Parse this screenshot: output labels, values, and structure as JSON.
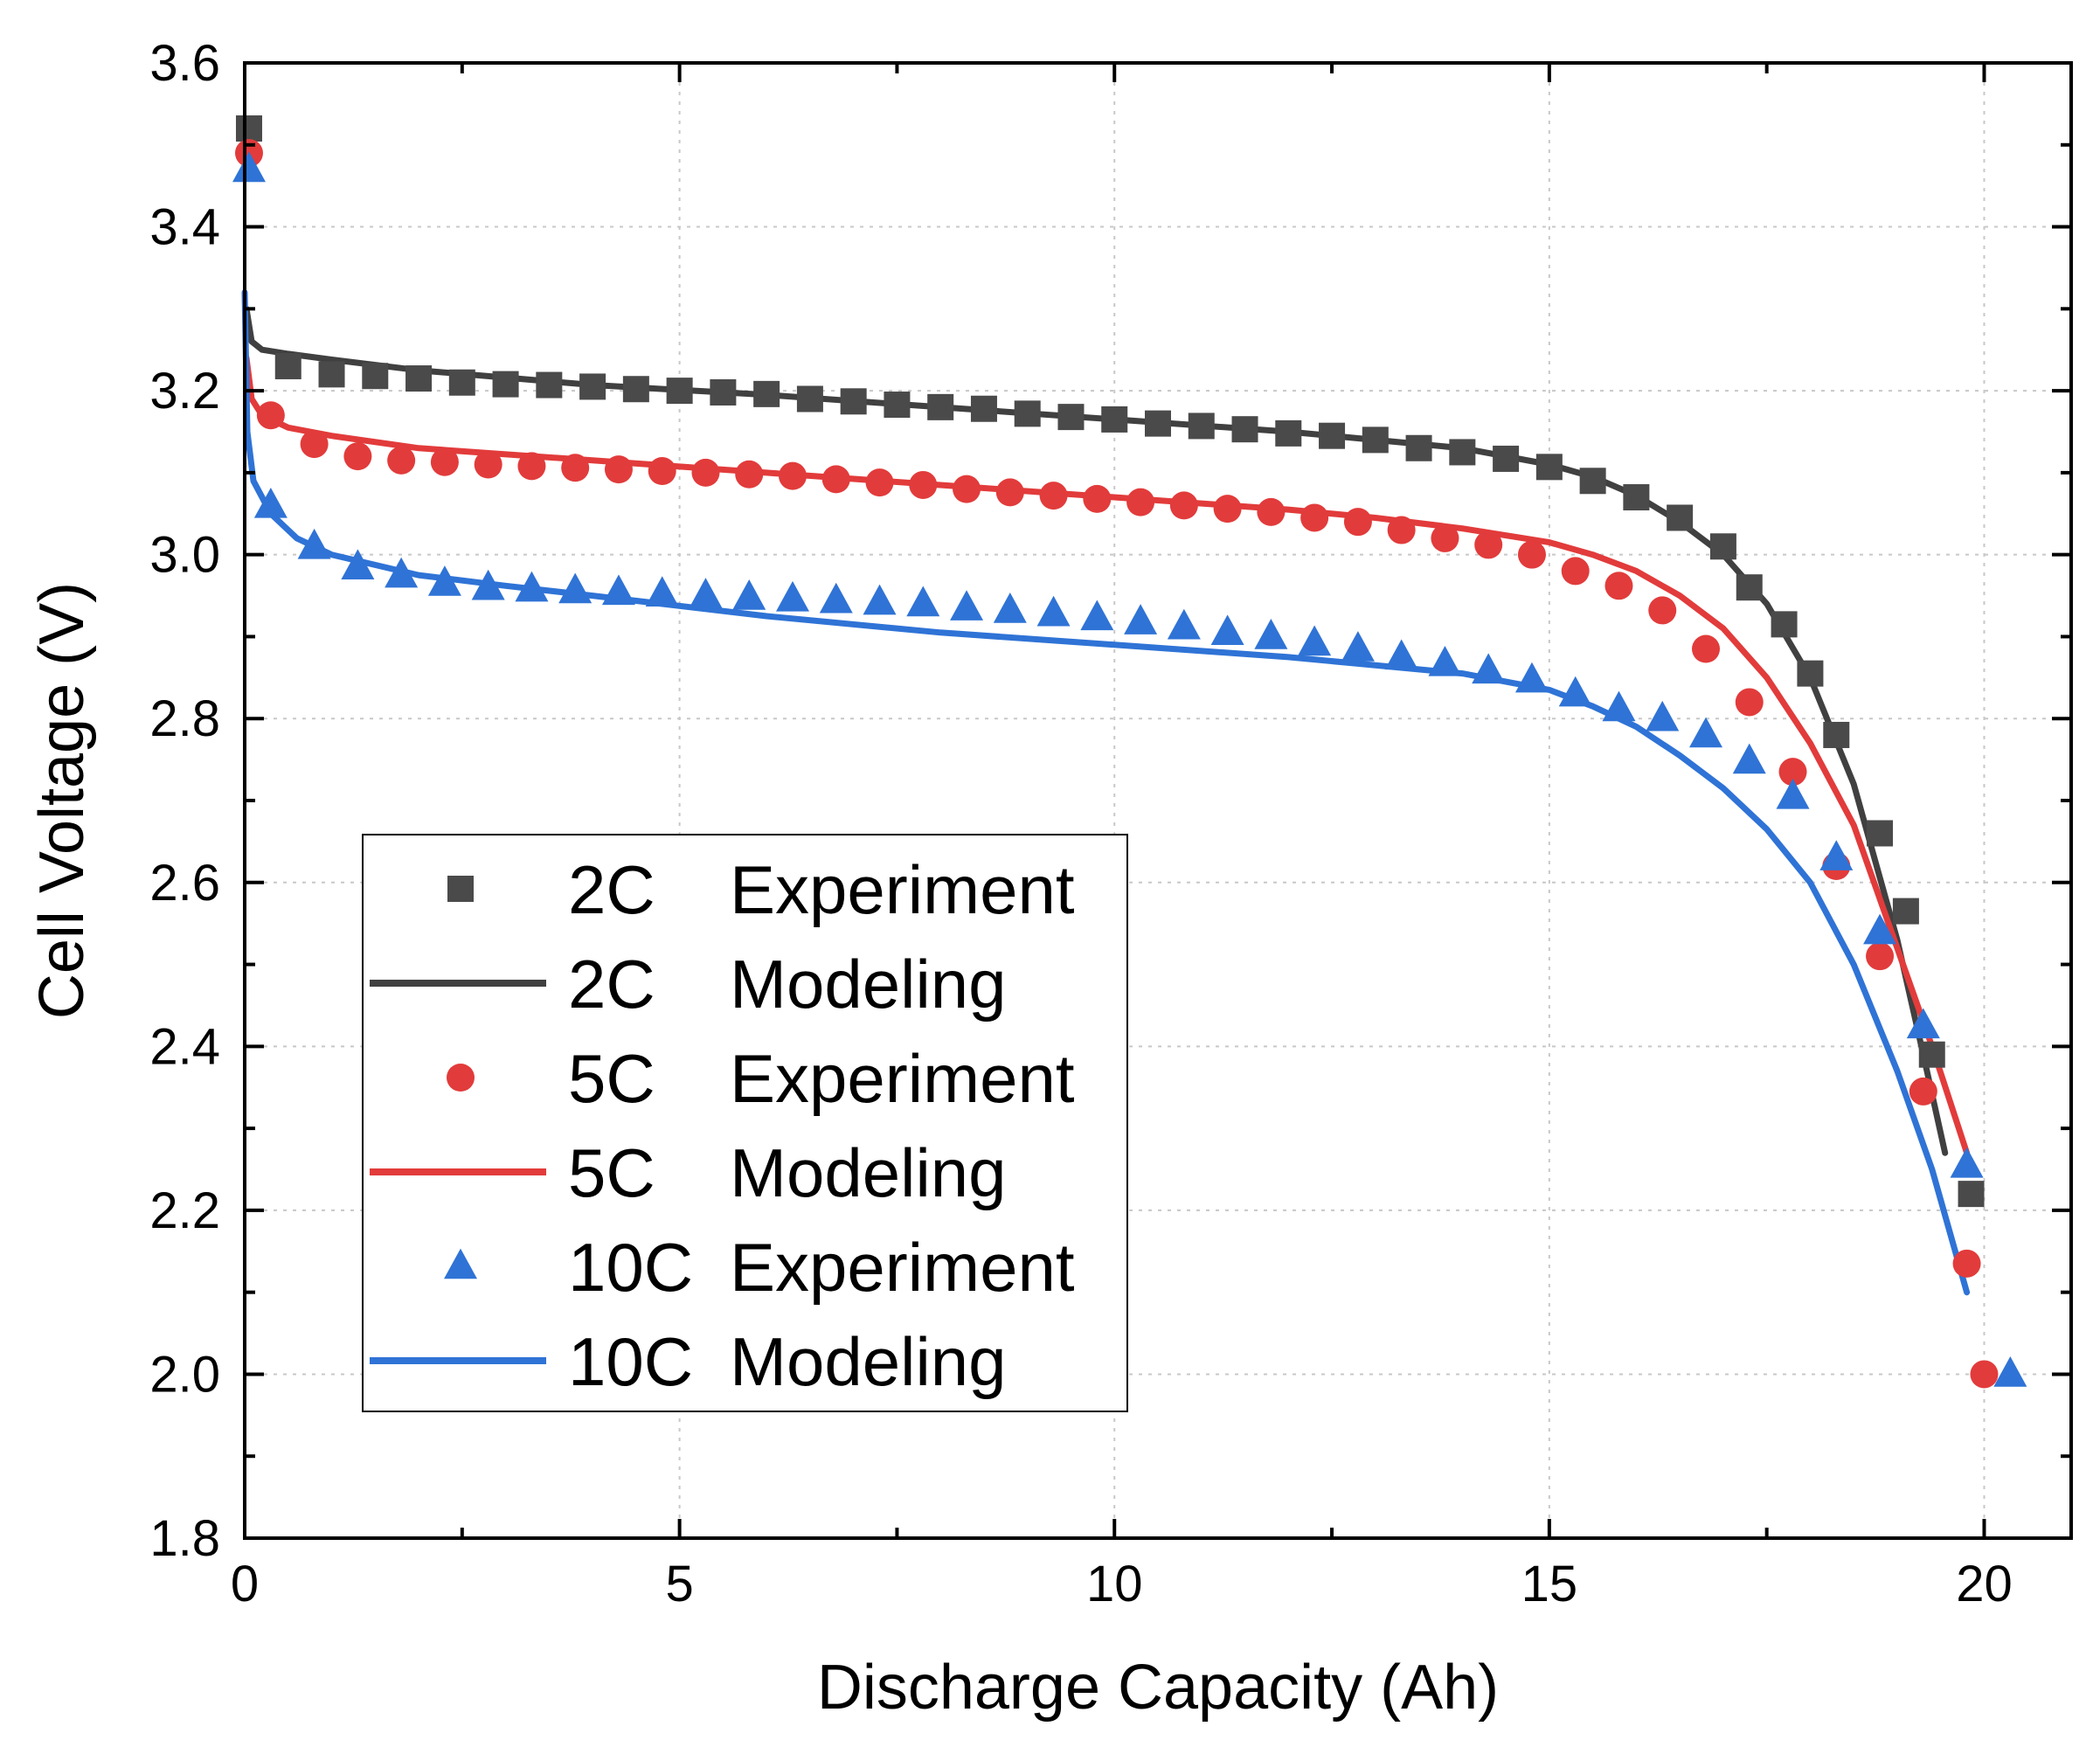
{
  "chart_data": {
    "type": "line",
    "title": "",
    "xlabel": "Discharge Capacity (Ah)",
    "ylabel": "Cell Voltage (V)",
    "xlim": [
      0,
      21
    ],
    "ylim": [
      1.8,
      3.6
    ],
    "x_ticks": [
      0,
      5,
      10,
      15,
      20
    ],
    "x_tick_labels": [
      "0",
      "5",
      "10",
      "15",
      "20"
    ],
    "x_minor_ticks": [
      2.5,
      7.5,
      12.5,
      17.5
    ],
    "y_ticks": [
      1.8,
      2.0,
      2.2,
      2.4,
      2.6,
      2.8,
      3.0,
      3.2,
      3.4,
      3.6
    ],
    "y_tick_labels": [
      "1.8",
      "2.0",
      "2.2",
      "2.4",
      "2.6",
      "2.8",
      "3.0",
      "3.2",
      "3.4",
      "3.6"
    ],
    "y_minor_ticks": [
      1.9,
      2.1,
      2.3,
      2.5,
      2.7,
      2.9,
      3.1,
      3.3,
      3.5
    ],
    "grid": true,
    "legend_position": "lower-left",
    "series": [
      {
        "id": "exp2c",
        "name": "2C Experiment",
        "rate": "2C",
        "kind_label": "Experiment",
        "style": "marker",
        "marker": "square",
        "color": "#4a4a4a",
        "x": [
          0.05,
          0.5,
          1.0,
          1.5,
          2.0,
          2.5,
          3.0,
          3.5,
          4.0,
          4.5,
          5.0,
          5.5,
          6.0,
          6.5,
          7.0,
          7.5,
          8.0,
          8.5,
          9.0,
          9.5,
          10.0,
          10.5,
          11.0,
          11.5,
          12.0,
          12.5,
          13.0,
          13.5,
          14.0,
          14.5,
          15.0,
          15.5,
          16.0,
          16.5,
          17.0,
          17.3,
          17.7,
          18.0,
          18.3,
          18.8,
          19.1,
          19.4,
          19.85
        ],
        "y": [
          3.52,
          3.23,
          3.22,
          3.218,
          3.215,
          3.21,
          3.208,
          3.207,
          3.205,
          3.202,
          3.2,
          3.198,
          3.196,
          3.19,
          3.187,
          3.183,
          3.18,
          3.178,
          3.172,
          3.168,
          3.165,
          3.16,
          3.157,
          3.153,
          3.148,
          3.145,
          3.14,
          3.13,
          3.125,
          3.117,
          3.107,
          3.09,
          3.07,
          3.045,
          3.01,
          2.96,
          2.915,
          2.855,
          2.78,
          2.66,
          2.565,
          2.39,
          2.22
        ]
      },
      {
        "id": "mod2c",
        "name": "2C Modeling",
        "rate": "2C",
        "kind_label": "Modeling",
        "style": "line",
        "color": "#404040",
        "x": [
          0.02,
          0.08,
          0.2,
          0.5,
          1.0,
          2.0,
          4.0,
          6.0,
          8.0,
          10.0,
          12.0,
          13.0,
          14.0,
          15.0,
          15.5,
          16.0,
          16.5,
          17.0,
          17.5,
          18.0,
          18.5,
          19.0,
          19.3,
          19.55
        ],
        "y": [
          3.3,
          3.26,
          3.25,
          3.245,
          3.238,
          3.225,
          3.207,
          3.195,
          3.18,
          3.165,
          3.15,
          3.14,
          3.13,
          3.11,
          3.095,
          3.072,
          3.04,
          3.0,
          2.94,
          2.85,
          2.72,
          2.53,
          2.39,
          2.27
        ]
      },
      {
        "id": "exp5c",
        "name": "5C Experiment",
        "rate": "5C",
        "kind_label": "Experiment",
        "style": "marker",
        "marker": "circle",
        "color": "#e23b3b",
        "x": [
          0.05,
          0.3,
          0.8,
          1.3,
          1.8,
          2.3,
          2.8,
          3.3,
          3.8,
          4.3,
          4.8,
          5.3,
          5.8,
          6.3,
          6.8,
          7.3,
          7.8,
          8.3,
          8.8,
          9.3,
          9.8,
          10.3,
          10.8,
          11.3,
          11.8,
          12.3,
          12.8,
          13.3,
          13.8,
          14.3,
          14.8,
          15.3,
          15.8,
          16.3,
          16.8,
          17.3,
          17.8,
          18.3,
          18.8,
          19.3,
          19.8,
          20.0
        ],
        "y": [
          3.49,
          3.17,
          3.135,
          3.12,
          3.115,
          3.113,
          3.11,
          3.108,
          3.106,
          3.104,
          3.102,
          3.1,
          3.098,
          3.096,
          3.092,
          3.088,
          3.085,
          3.08,
          3.076,
          3.072,
          3.068,
          3.064,
          3.06,
          3.056,
          3.052,
          3.045,
          3.04,
          3.03,
          3.02,
          3.012,
          3.0,
          2.98,
          2.962,
          2.932,
          2.885,
          2.82,
          2.735,
          2.62,
          2.51,
          2.345,
          2.135,
          2.0
        ]
      },
      {
        "id": "mod5c",
        "name": "5C Modeling",
        "rate": "5C",
        "kind_label": "Modeling",
        "style": "line",
        "color": "#e23b3b",
        "x": [
          0.02,
          0.08,
          0.2,
          0.5,
          1.0,
          2.0,
          4.0,
          6.0,
          8.0,
          10.0,
          12.0,
          13.0,
          14.0,
          15.0,
          15.5,
          16.0,
          16.5,
          17.0,
          17.5,
          18.0,
          18.5,
          19.0,
          19.4,
          19.8
        ],
        "y": [
          3.24,
          3.19,
          3.17,
          3.155,
          3.145,
          3.13,
          3.115,
          3.1,
          3.085,
          3.07,
          3.055,
          3.045,
          3.032,
          3.015,
          3.0,
          2.98,
          2.95,
          2.91,
          2.85,
          2.77,
          2.67,
          2.52,
          2.4,
          2.27
        ]
      },
      {
        "id": "exp10c",
        "name": "10C Experiment",
        "rate": "10C",
        "kind_label": "Experiment",
        "style": "marker",
        "marker": "triangle",
        "color": "#2f73d6",
        "x": [
          0.05,
          0.3,
          0.8,
          1.3,
          1.8,
          2.3,
          2.8,
          3.3,
          3.8,
          4.3,
          4.8,
          5.3,
          5.8,
          6.3,
          6.8,
          7.3,
          7.8,
          8.3,
          8.8,
          9.3,
          9.8,
          10.3,
          10.8,
          11.3,
          11.8,
          12.3,
          12.8,
          13.3,
          13.8,
          14.3,
          14.8,
          15.3,
          15.8,
          16.3,
          16.8,
          17.3,
          17.8,
          18.3,
          18.8,
          19.3,
          19.8,
          20.3
        ],
        "y": [
          3.47,
          3.06,
          3.01,
          2.985,
          2.975,
          2.965,
          2.96,
          2.958,
          2.956,
          2.954,
          2.952,
          2.95,
          2.948,
          2.946,
          2.944,
          2.942,
          2.94,
          2.935,
          2.932,
          2.928,
          2.923,
          2.918,
          2.912,
          2.905,
          2.9,
          2.892,
          2.885,
          2.875,
          2.867,
          2.858,
          2.847,
          2.83,
          2.812,
          2.8,
          2.78,
          2.748,
          2.705,
          2.63,
          2.54,
          2.425,
          2.255,
          2.0
        ]
      },
      {
        "id": "mod10c",
        "name": "10C Modeling",
        "rate": "10C",
        "kind_label": "Modeling",
        "style": "line",
        "color": "#2f73d6",
        "x": [
          0.0,
          0.03,
          0.1,
          0.3,
          0.6,
          1.0,
          2.0,
          3.0,
          4.0,
          6.0,
          8.0,
          10.0,
          12.0,
          14.0,
          15.0,
          15.5,
          16.0,
          16.5,
          17.0,
          17.5,
          18.0,
          18.5,
          19.0,
          19.4,
          19.8
        ],
        "y": [
          3.32,
          3.15,
          3.09,
          3.05,
          3.02,
          3.0,
          2.975,
          2.962,
          2.95,
          2.925,
          2.905,
          2.89,
          2.875,
          2.855,
          2.835,
          2.815,
          2.79,
          2.755,
          2.715,
          2.665,
          2.6,
          2.5,
          2.37,
          2.25,
          2.1
        ]
      }
    ]
  }
}
